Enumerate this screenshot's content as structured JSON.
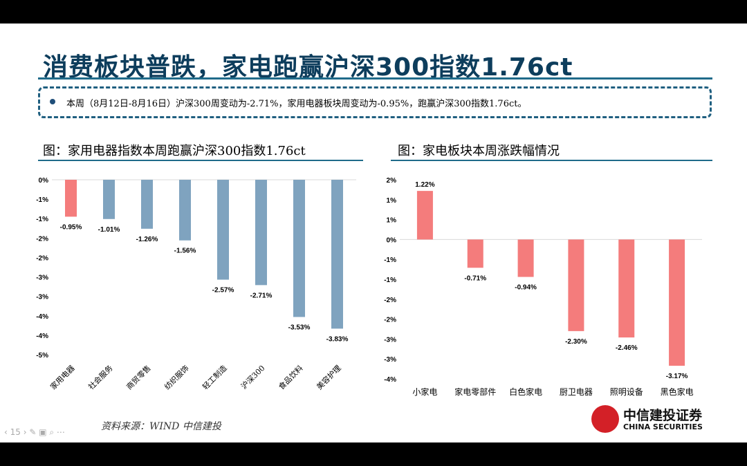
{
  "title": "消费板块普跌，家电跑赢沪深300指数1.76ct",
  "note": "本周（8月12日-8月16日）沪深300周变动为-2.71%，家用电器板块周变动为-0.95%，跑赢沪深300指数1.76ct。",
  "source": "资料来源：WIND  中信建投",
  "page_number": "15",
  "logo": {
    "cn": "中信建投证券",
    "en": "CHINA SECURITIES"
  },
  "chart_data": [
    {
      "type": "bar",
      "title": "图：家用电器指数本周跑赢沪深300指数1.76ct",
      "categories": [
        "家用电器",
        "社会服务",
        "商贸零售",
        "纺织服饰",
        "轻工制造",
        "沪深300",
        "食品饮料",
        "美容护理"
      ],
      "values": [
        -0.95,
        -1.01,
        -1.26,
        -1.56,
        -2.57,
        -2.71,
        -3.53,
        -3.83
      ],
      "data_labels": [
        "-0.95%",
        "-1.01%",
        "-1.26%",
        "-1.56%",
        "-2.57%",
        "-2.71%",
        "-3.53%",
        "-3.83%"
      ],
      "colors": [
        "#f47c7c",
        "#7fa3bf",
        "#7fa3bf",
        "#7fa3bf",
        "#7fa3bf",
        "#7fa3bf",
        "#7fa3bf",
        "#7fa3bf"
      ],
      "yticks": [
        "0%",
        "-1%",
        "-1%",
        "-2%",
        "-2%",
        "-3%",
        "-3%",
        "-4%",
        "-4%",
        "-5%"
      ],
      "ylim": [
        -4.5,
        0
      ],
      "grid": false
    },
    {
      "type": "bar",
      "title": "图：家电板块本周涨跌幅情况",
      "categories": [
        "小家电",
        "家电零部件",
        "白色家电",
        "厨卫电器",
        "照明设备",
        "黑色家电"
      ],
      "values": [
        1.22,
        -0.71,
        -0.94,
        -2.3,
        -2.46,
        -3.17
      ],
      "data_labels": [
        "1.22%",
        "-0.71%",
        "-0.94%",
        "-2.30%",
        "-2.46%",
        "-3.17%"
      ],
      "colors": [
        "#f47c7c",
        "#f47c7c",
        "#f47c7c",
        "#f47c7c",
        "#f47c7c",
        "#f47c7c"
      ],
      "yticks": [
        "2%",
        "1%",
        "1%",
        "0%",
        "-1%",
        "-1%",
        "-2%",
        "-2%",
        "-3%",
        "-3%",
        "-4%"
      ],
      "ylim": [
        -3.5,
        1.5
      ],
      "grid": false
    }
  ]
}
